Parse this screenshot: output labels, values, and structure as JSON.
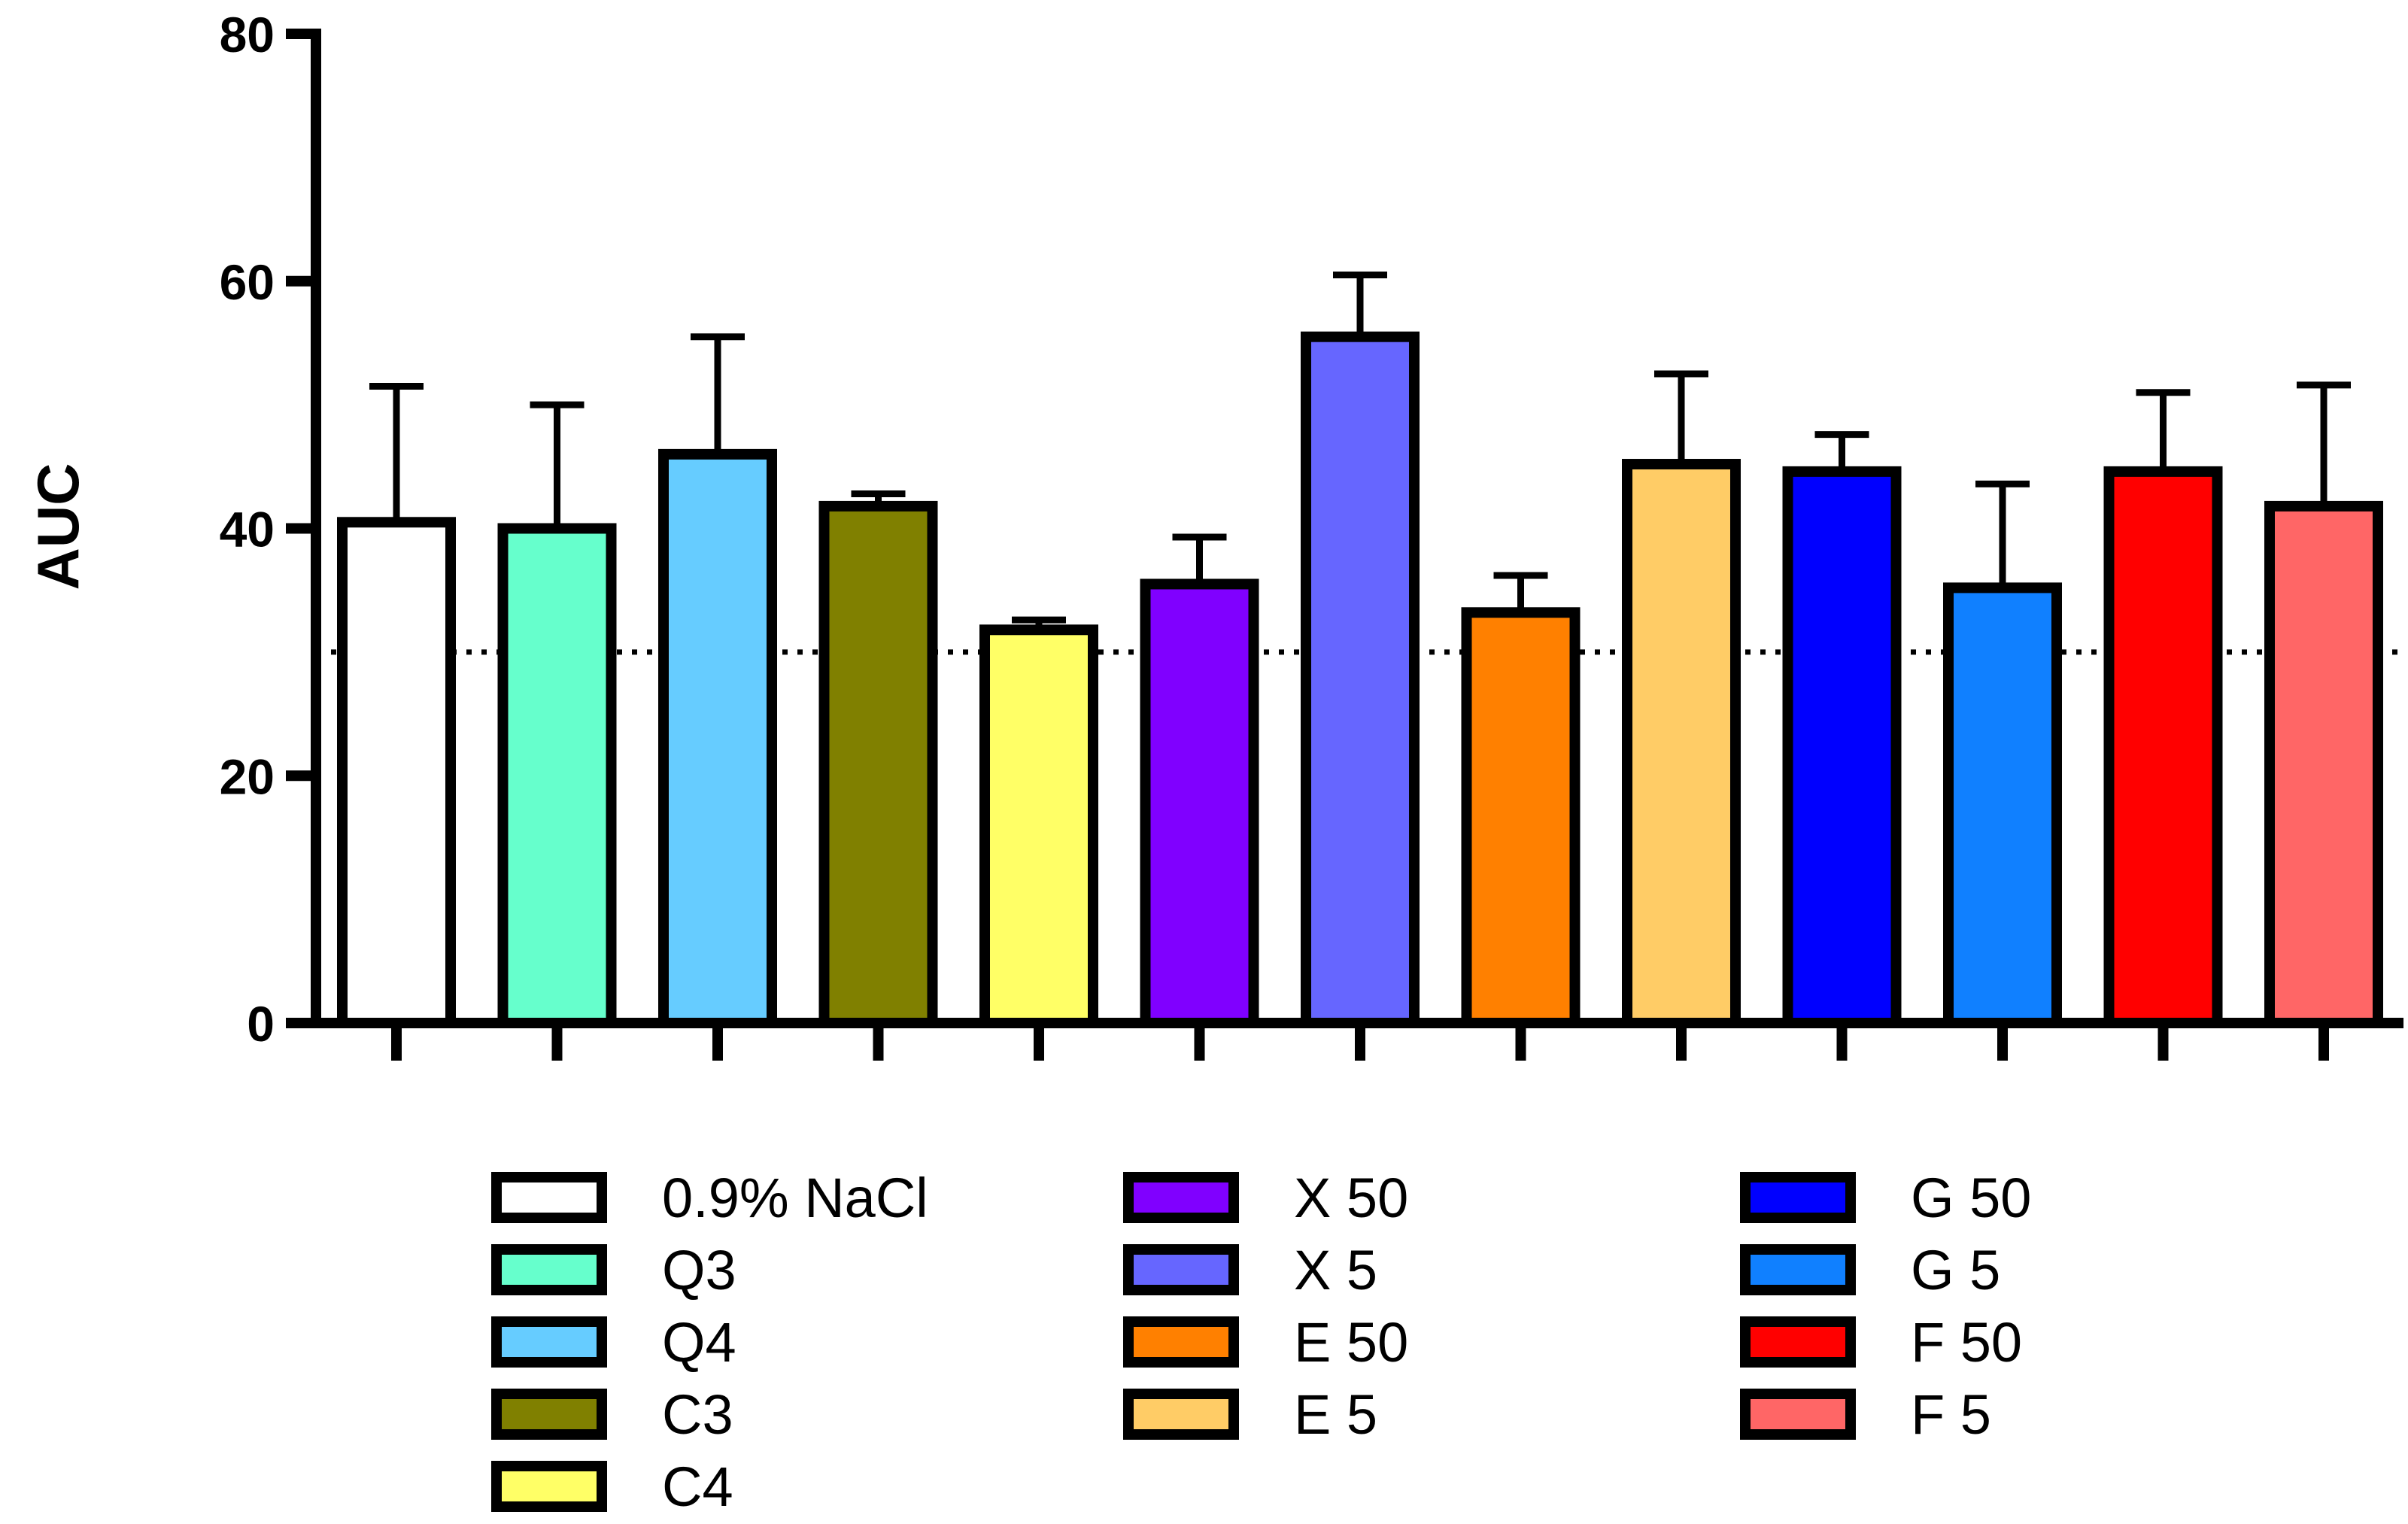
{
  "chart_data": {
    "type": "bar",
    "ylabel": "AUC",
    "xlabel": "",
    "ylim": [
      0,
      80
    ],
    "yticks": [
      0,
      20,
      40,
      60,
      80
    ],
    "reference_line": 30,
    "grid": false,
    "legend_position": "bottom",
    "categories": [
      "0.9% NaCl",
      "Q3",
      "Q4",
      "C3",
      "C4",
      "X 50",
      "X 5",
      "E 50",
      "E 5",
      "G 50",
      "G 5",
      "F 50",
      "F 5"
    ],
    "values": [
      40.5,
      40.0,
      46.0,
      41.8,
      31.8,
      35.5,
      55.5,
      33.2,
      45.2,
      44.6,
      35.2,
      44.6,
      41.8
    ],
    "errors": [
      11.0,
      10.0,
      9.5,
      1.0,
      0.8,
      3.8,
      5.0,
      3.0,
      7.3,
      3.0,
      8.4,
      6.4,
      9.8
    ],
    "colors": [
      "#FFFFFF",
      "#66FFCC",
      "#66CCFF",
      "#808000",
      "#FFFF66",
      "#8000FF",
      "#6666FF",
      "#FF8000",
      "#FFCC66",
      "#0000FF",
      "#1080FF",
      "#FF0000",
      "#FF6666"
    ]
  }
}
